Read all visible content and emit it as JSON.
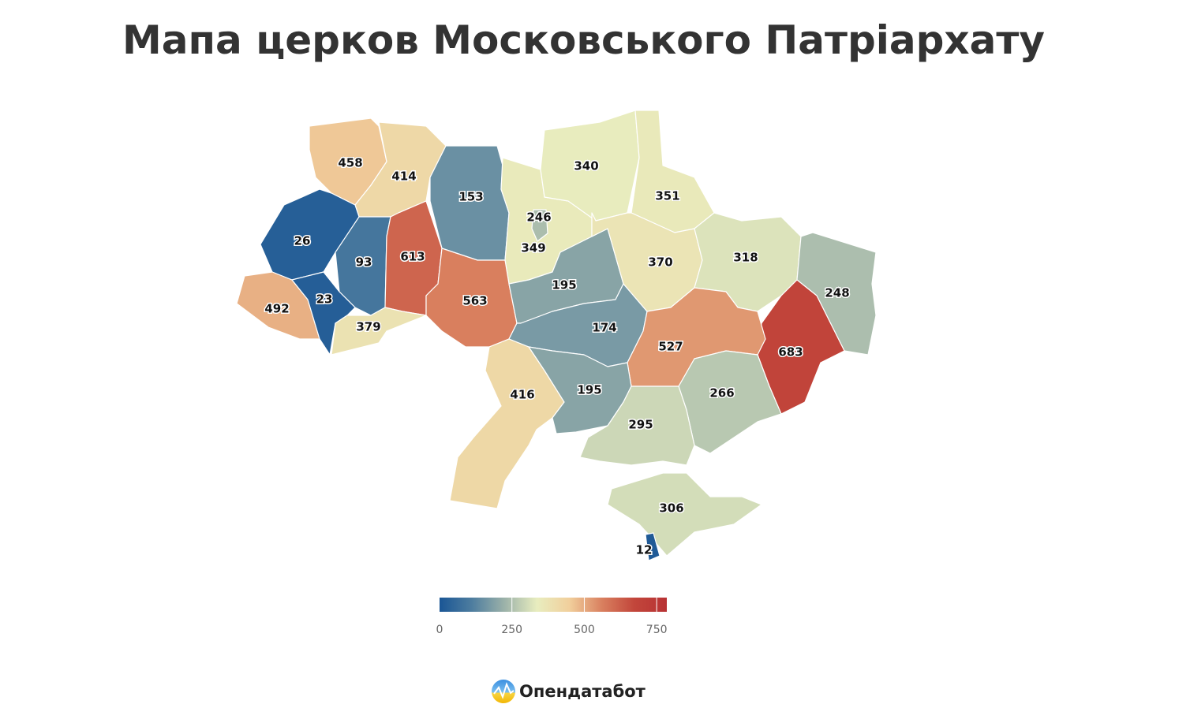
{
  "title": "Мапа церков Московського Патріархату",
  "map": {
    "type": "choropleth",
    "regions": [
      {
        "value": 458
      },
      {
        "value": 414
      },
      {
        "value": 153
      },
      {
        "value": 349
      },
      {
        "value": 246
      },
      {
        "value": 340
      },
      {
        "value": 351
      },
      {
        "value": 26
      },
      {
        "value": 93
      },
      {
        "value": 613
      },
      {
        "value": 492
      },
      {
        "value": 23
      },
      {
        "value": 379
      },
      {
        "value": 563
      },
      {
        "value": 195
      },
      {
        "value": 174
      },
      {
        "value": 370
      },
      {
        "value": 318
      },
      {
        "value": 248
      },
      {
        "value": 683
      },
      {
        "value": 527
      },
      {
        "value": 266
      },
      {
        "value": 416
      },
      {
        "value": 195
      },
      {
        "value": 295
      },
      {
        "value": 306
      },
      {
        "value": 12
      }
    ],
    "colorscale": [
      "#1a5695",
      "#4e7d9f",
      "#9cb2a9",
      "#e8edbf",
      "#f1cf9c",
      "#d9805f",
      "#c2463b",
      "#b83234"
    ],
    "scale_range": [
      0,
      785
    ],
    "ticks": [
      0,
      250,
      500,
      750
    ]
  },
  "footer": {
    "brand": "Опендатабот"
  }
}
